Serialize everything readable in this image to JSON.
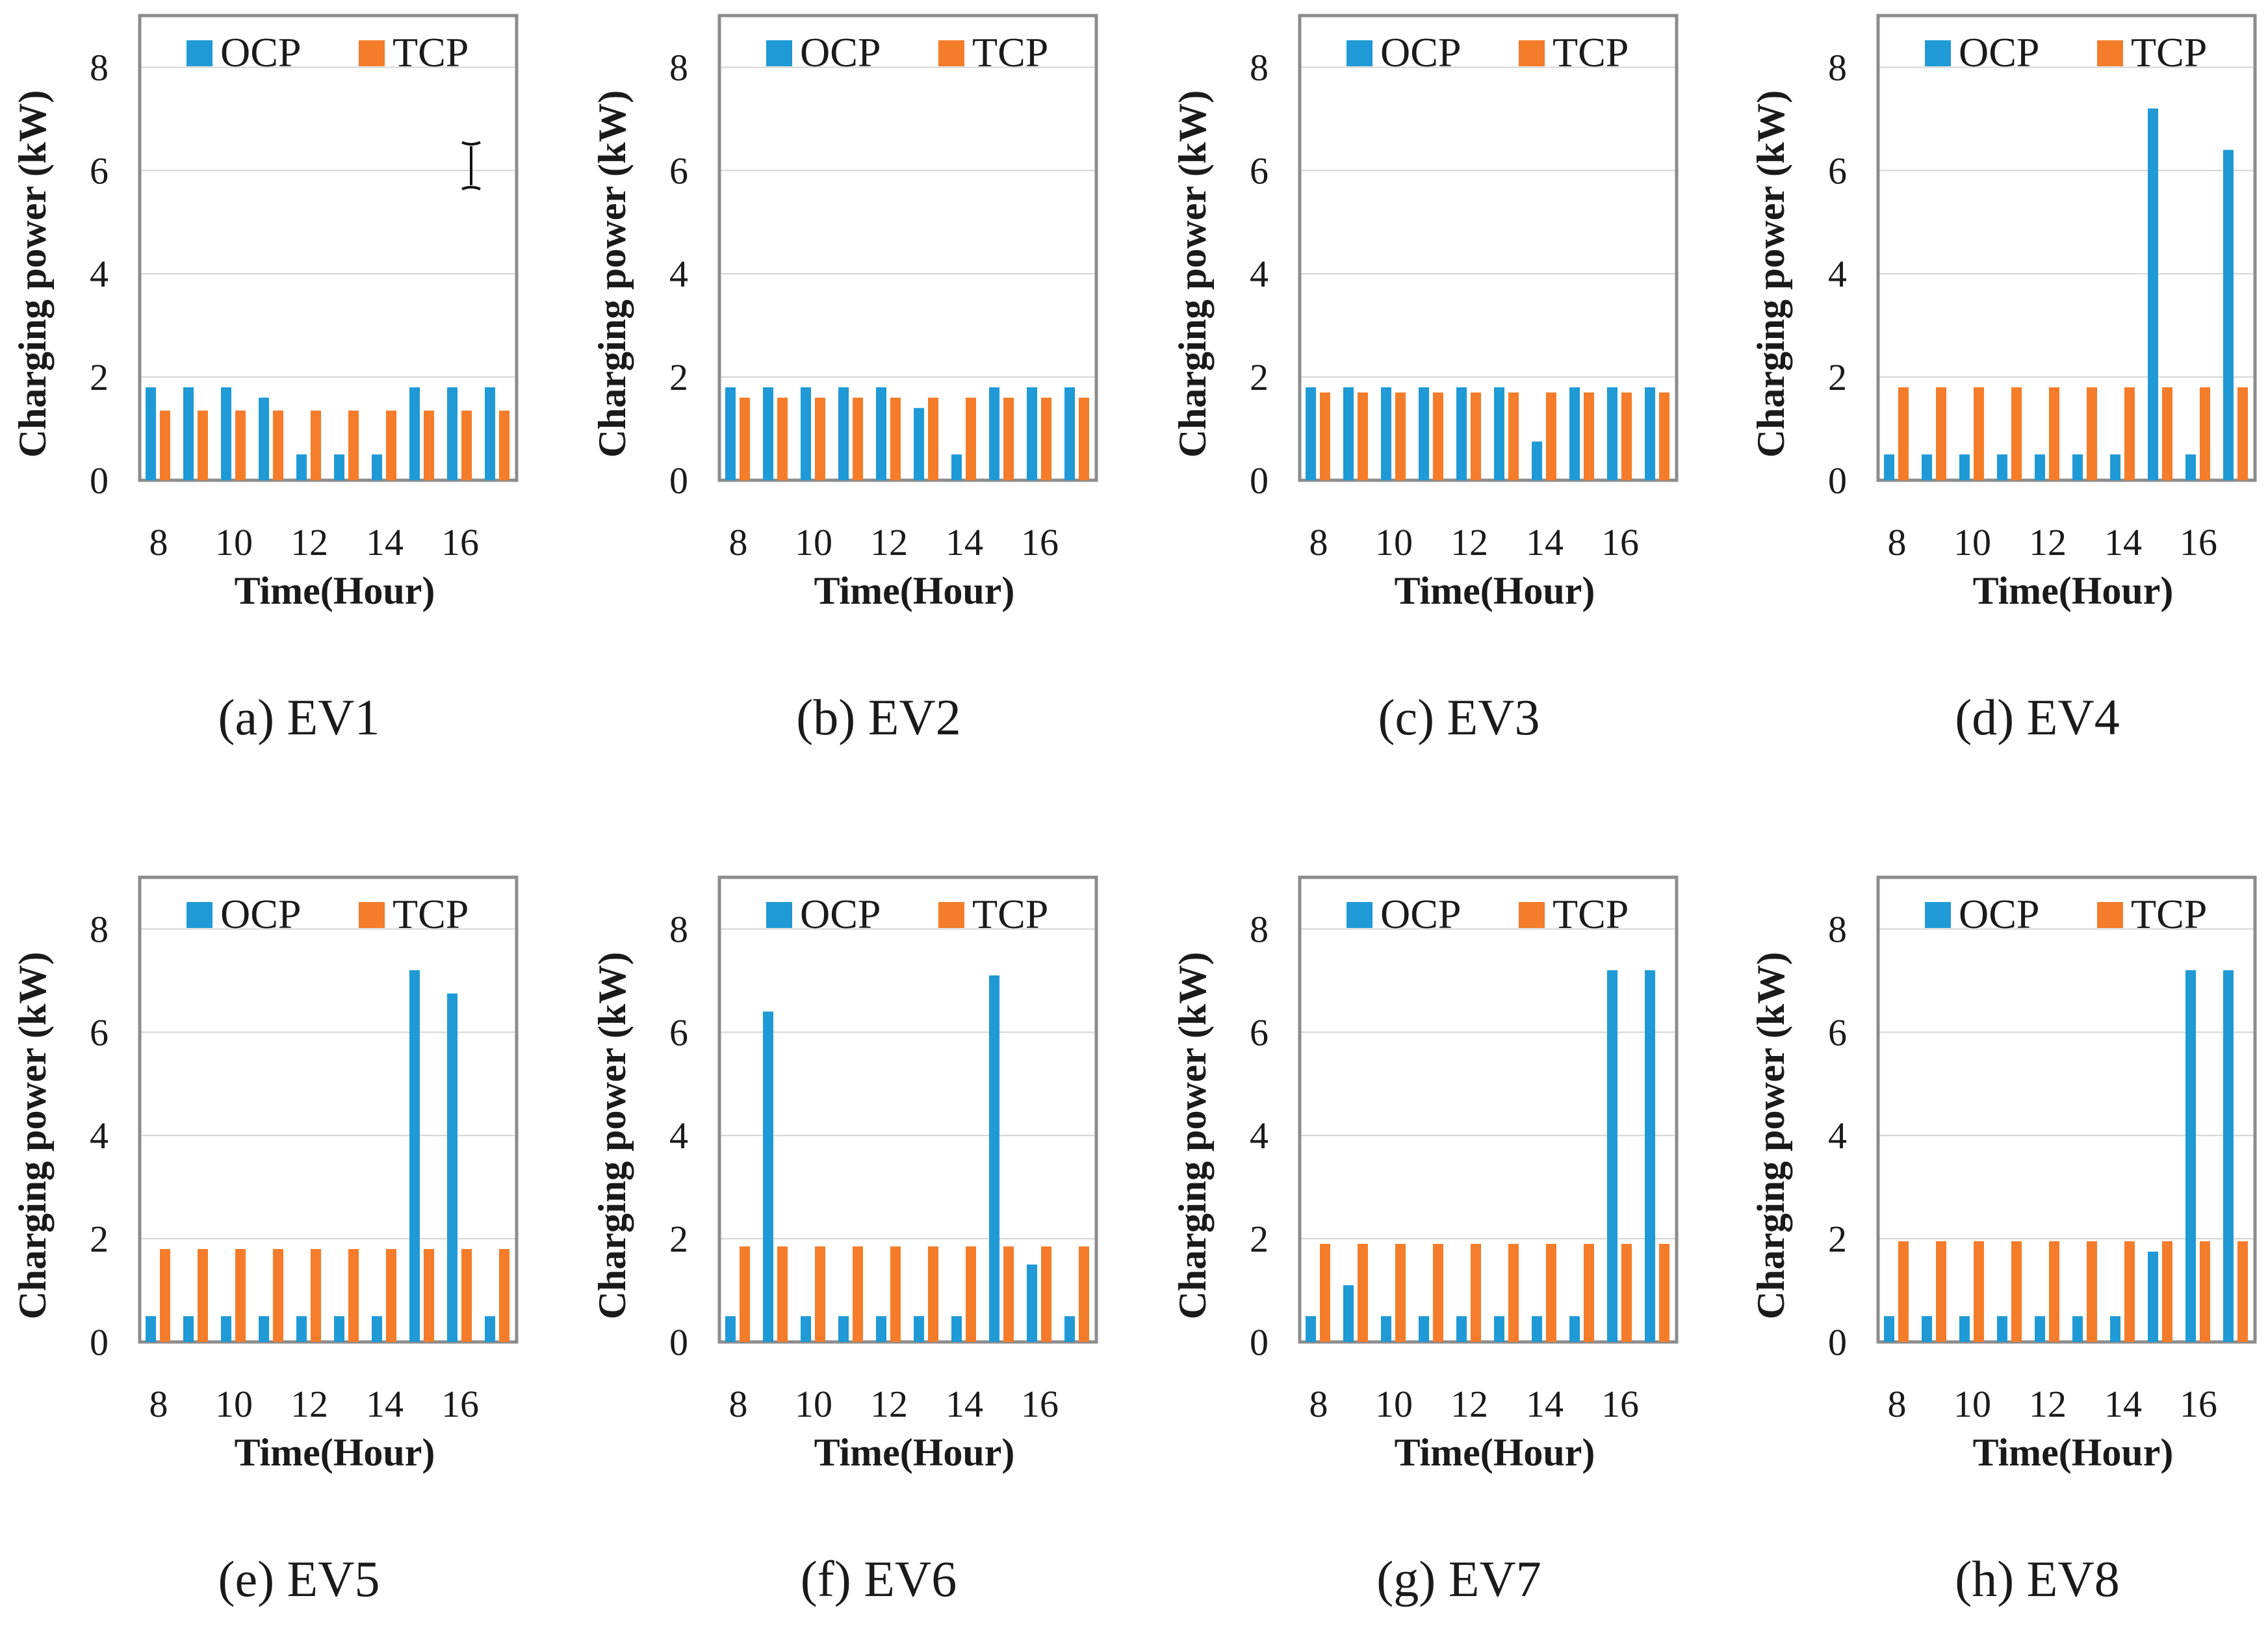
{
  "colors": {
    "ocp": "#1f9ad6",
    "tcp": "#f47c2a",
    "grid": "#d4d4d4",
    "frame": "#8c8c8c"
  },
  "chart_data": [
    {
      "type": "bar",
      "caption": "(a) EV1",
      "categories": [
        "8",
        "9",
        "10",
        "11",
        "12",
        "13",
        "14",
        "15",
        "16",
        "17"
      ],
      "x_tick_labels": [
        "8",
        "10",
        "12",
        "14",
        "16"
      ],
      "xlabel": "Time(Hour)",
      "ylabel": "Charging power (kW)",
      "ylim": [
        0,
        9
      ],
      "y_ticks": [
        0,
        2,
        4,
        6,
        8
      ],
      "grid": true,
      "legend": "top",
      "series": [
        {
          "name": "OCP",
          "values": [
            1.8,
            1.8,
            1.8,
            1.6,
            0.5,
            0.5,
            0.5,
            1.8,
            1.8,
            1.8
          ]
        },
        {
          "name": "TCP",
          "values": [
            1.35,
            1.35,
            1.35,
            1.35,
            1.35,
            1.35,
            1.35,
            1.35,
            1.35,
            1.35
          ]
        }
      ]
    },
    {
      "type": "bar",
      "caption": "(b) EV2",
      "categories": [
        "8",
        "9",
        "10",
        "11",
        "12",
        "13",
        "14",
        "15",
        "16",
        "17"
      ],
      "x_tick_labels": [
        "8",
        "10",
        "12",
        "14",
        "16"
      ],
      "xlabel": "Time(Hour)",
      "ylabel": "Charging power (kW)",
      "ylim": [
        0,
        9
      ],
      "y_ticks": [
        0,
        2,
        4,
        6,
        8
      ],
      "grid": true,
      "legend": "top",
      "series": [
        {
          "name": "OCP",
          "values": [
            1.8,
            1.8,
            1.8,
            1.8,
            1.8,
            1.4,
            0.5,
            1.8,
            1.8,
            1.8
          ]
        },
        {
          "name": "TCP",
          "values": [
            1.6,
            1.6,
            1.6,
            1.6,
            1.6,
            1.6,
            1.6,
            1.6,
            1.6,
            1.6
          ]
        }
      ]
    },
    {
      "type": "bar",
      "caption": "(c) EV3",
      "categories": [
        "8",
        "9",
        "10",
        "11",
        "12",
        "13",
        "14",
        "15",
        "16",
        "17"
      ],
      "x_tick_labels": [
        "8",
        "10",
        "12",
        "14",
        "16"
      ],
      "xlabel": "Time(Hour)",
      "ylabel": "Charging power (kW)",
      "ylim": [
        0,
        9
      ],
      "y_ticks": [
        0,
        2,
        4,
        6,
        8
      ],
      "grid": true,
      "legend": "top",
      "series": [
        {
          "name": "OCP",
          "values": [
            1.8,
            1.8,
            1.8,
            1.8,
            1.8,
            1.8,
            0.75,
            1.8,
            1.8,
            1.8
          ]
        },
        {
          "name": "TCP",
          "values": [
            1.7,
            1.7,
            1.7,
            1.7,
            1.7,
            1.7,
            1.7,
            1.7,
            1.7,
            1.7
          ]
        }
      ]
    },
    {
      "type": "bar",
      "caption": "(d) EV4",
      "categories": [
        "8",
        "9",
        "10",
        "11",
        "12",
        "13",
        "14",
        "15",
        "16",
        "17"
      ],
      "x_tick_labels": [
        "8",
        "10",
        "12",
        "14",
        "16"
      ],
      "xlabel": "Time(Hour)",
      "ylabel": "Charging power (kW)",
      "ylim": [
        0,
        9
      ],
      "y_ticks": [
        0,
        2,
        4,
        6,
        8
      ],
      "grid": true,
      "legend": "top",
      "series": [
        {
          "name": "OCP",
          "values": [
            0.5,
            0.5,
            0.5,
            0.5,
            0.5,
            0.5,
            0.5,
            7.2,
            0.5,
            6.4
          ]
        },
        {
          "name": "TCP",
          "values": [
            1.8,
            1.8,
            1.8,
            1.8,
            1.8,
            1.8,
            1.8,
            1.8,
            1.8,
            1.8
          ]
        }
      ]
    },
    {
      "type": "bar",
      "caption": "(e) EV5",
      "categories": [
        "8",
        "9",
        "10",
        "11",
        "12",
        "13",
        "14",
        "15",
        "16",
        "17"
      ],
      "x_tick_labels": [
        "8",
        "10",
        "12",
        "14",
        "16"
      ],
      "xlabel": "Time(Hour)",
      "ylabel": "Charging power (kW)",
      "ylim": [
        0,
        9
      ],
      "y_ticks": [
        0,
        2,
        4,
        6,
        8
      ],
      "grid": true,
      "legend": "top",
      "series": [
        {
          "name": "OCP",
          "values": [
            0.5,
            0.5,
            0.5,
            0.5,
            0.5,
            0.5,
            0.5,
            7.2,
            6.75,
            0.5
          ]
        },
        {
          "name": "TCP",
          "values": [
            1.8,
            1.8,
            1.8,
            1.8,
            1.8,
            1.8,
            1.8,
            1.8,
            1.8,
            1.8
          ]
        }
      ]
    },
    {
      "type": "bar",
      "caption": "(f) EV6",
      "categories": [
        "8",
        "9",
        "10",
        "11",
        "12",
        "13",
        "14",
        "15",
        "16",
        "17"
      ],
      "x_tick_labels": [
        "8",
        "10",
        "12",
        "14",
        "16"
      ],
      "xlabel": "Time(Hour)",
      "ylabel": "Charging power (kW)",
      "ylim": [
        0,
        9
      ],
      "y_ticks": [
        0,
        2,
        4,
        6,
        8
      ],
      "grid": true,
      "legend": "top",
      "series": [
        {
          "name": "OCP",
          "values": [
            0.5,
            6.4,
            0.5,
            0.5,
            0.5,
            0.5,
            0.5,
            7.1,
            1.5,
            0.5
          ]
        },
        {
          "name": "TCP",
          "values": [
            1.85,
            1.85,
            1.85,
            1.85,
            1.85,
            1.85,
            1.85,
            1.85,
            1.85,
            1.85
          ]
        }
      ]
    },
    {
      "type": "bar",
      "caption": "(g) EV7",
      "categories": [
        "8",
        "9",
        "10",
        "11",
        "12",
        "13",
        "14",
        "15",
        "16",
        "17"
      ],
      "x_tick_labels": [
        "8",
        "10",
        "12",
        "14",
        "16"
      ],
      "xlabel": "Time(Hour)",
      "ylabel": "Charging power (kW)",
      "ylim": [
        0,
        9
      ],
      "y_ticks": [
        0,
        2,
        4,
        6,
        8
      ],
      "grid": true,
      "legend": "top",
      "series": [
        {
          "name": "OCP",
          "values": [
            0.5,
            1.1,
            0.5,
            0.5,
            0.5,
            0.5,
            0.5,
            0.5,
            7.2,
            7.2
          ]
        },
        {
          "name": "TCP",
          "values": [
            1.9,
            1.9,
            1.9,
            1.9,
            1.9,
            1.9,
            1.9,
            1.9,
            1.9,
            1.9
          ]
        }
      ]
    },
    {
      "type": "bar",
      "caption": "(h) EV8",
      "categories": [
        "8",
        "9",
        "10",
        "11",
        "12",
        "13",
        "14",
        "15",
        "16",
        "17"
      ],
      "x_tick_labels": [
        "8",
        "10",
        "12",
        "14",
        "16"
      ],
      "xlabel": "Time(Hour)",
      "ylabel": "Charging power (kW)",
      "ylim": [
        0,
        9
      ],
      "y_ticks": [
        0,
        2,
        4,
        6,
        8
      ],
      "grid": true,
      "legend": "top",
      "series": [
        {
          "name": "OCP",
          "values": [
            0.5,
            0.5,
            0.5,
            0.5,
            0.5,
            0.5,
            0.5,
            1.75,
            7.2,
            7.2
          ]
        },
        {
          "name": "TCP",
          "values": [
            1.95,
            1.95,
            1.95,
            1.95,
            1.95,
            1.95,
            1.95,
            1.95,
            1.95,
            1.95
          ]
        }
      ]
    }
  ]
}
